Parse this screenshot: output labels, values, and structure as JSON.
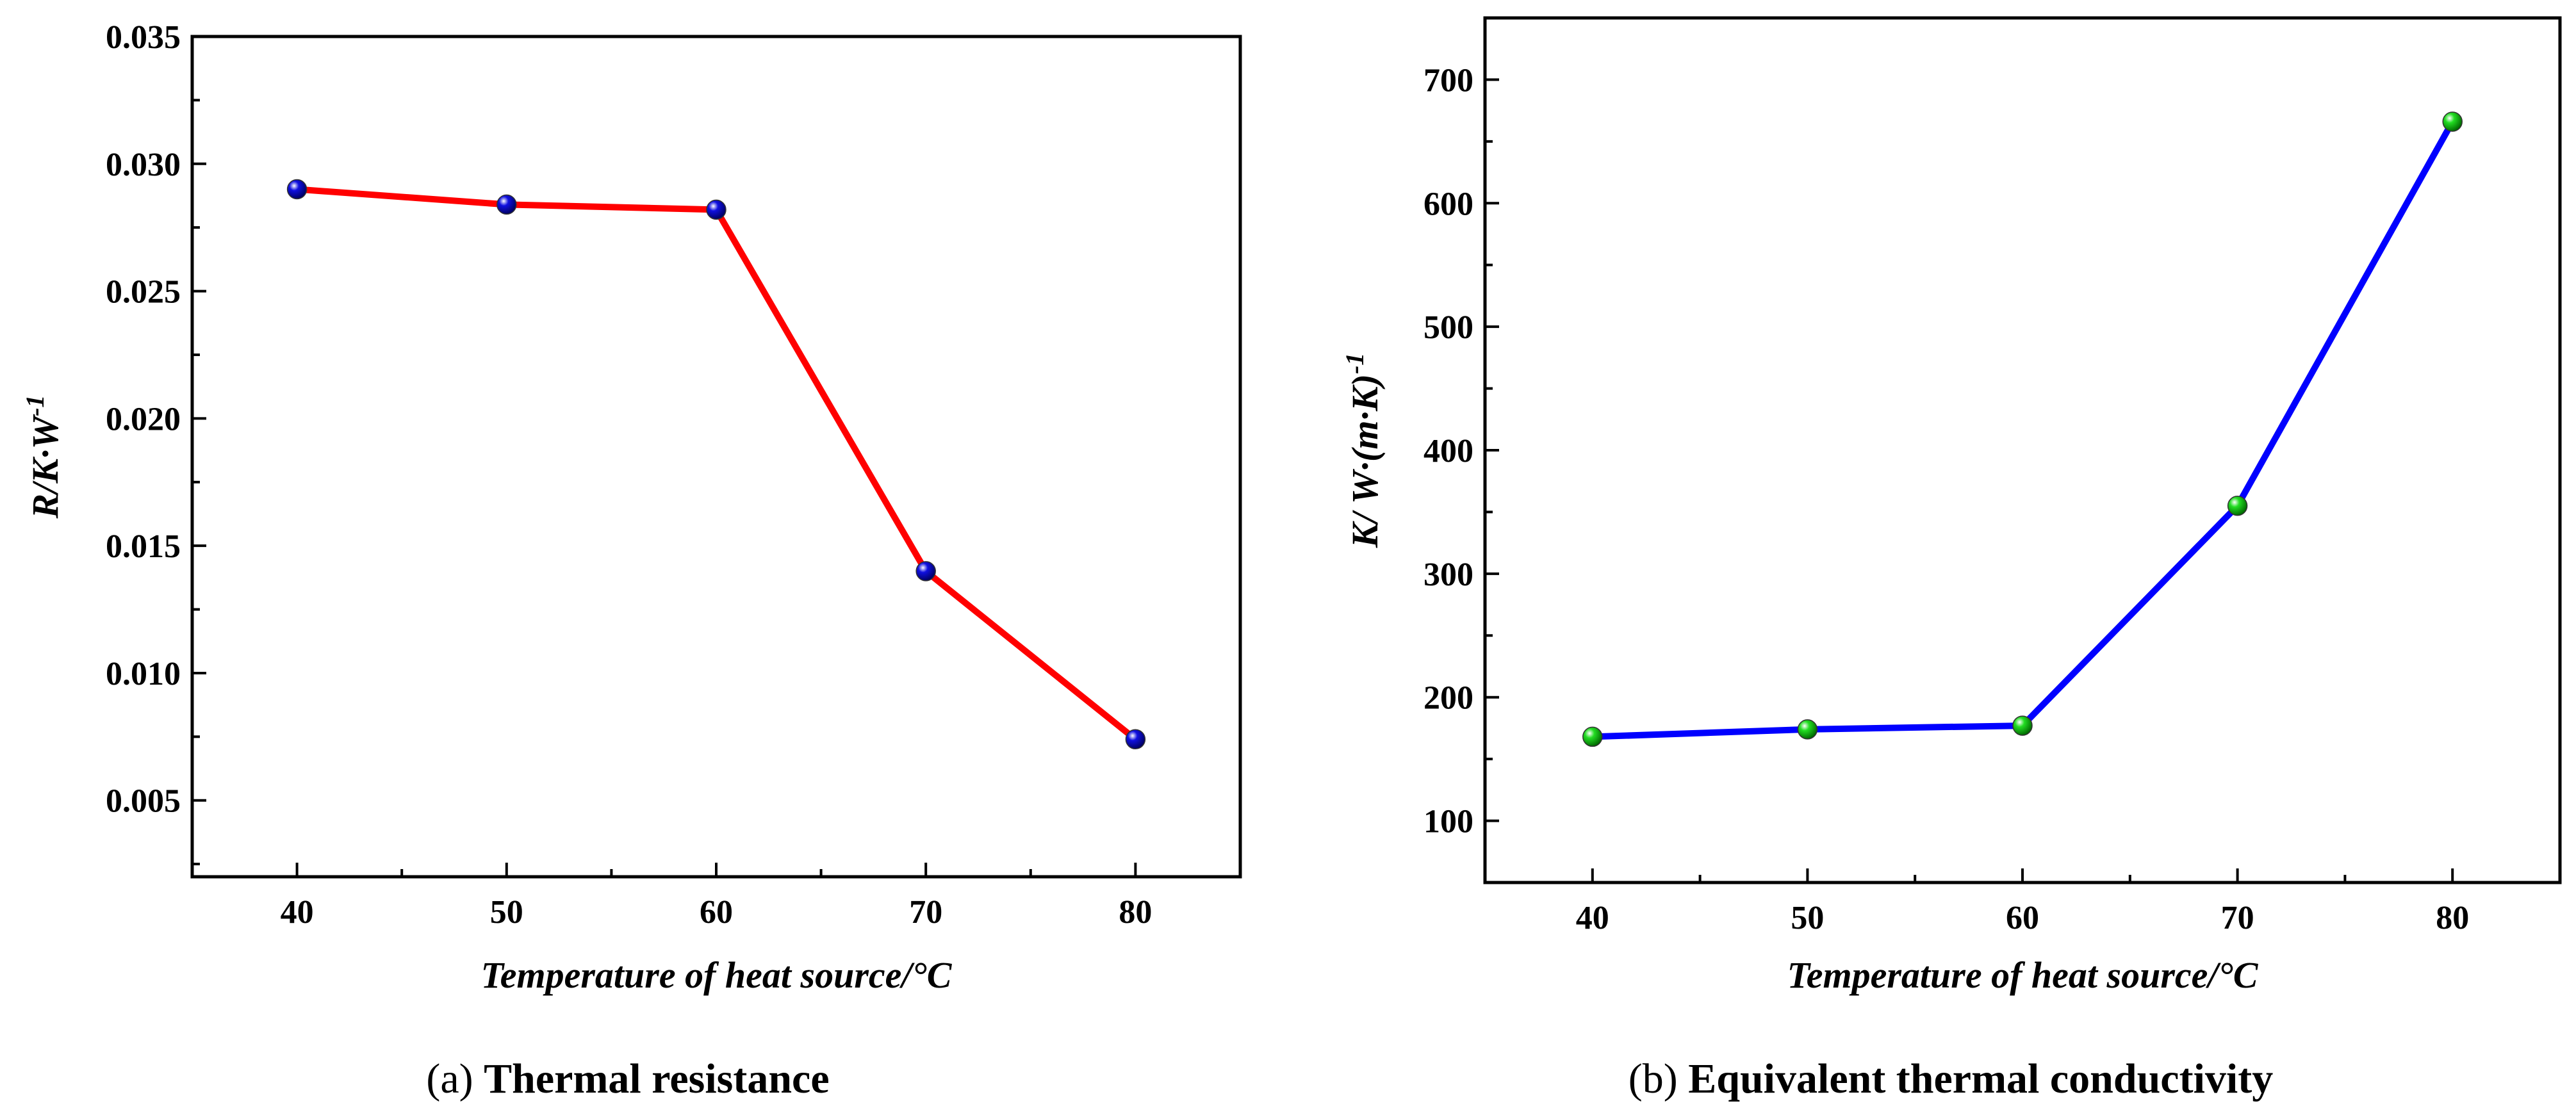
{
  "chart_data": [
    {
      "type": "line",
      "caption_prefix": "(a)",
      "caption_title": "Thermal resistance",
      "xlabel": "Temperature of heat source/°C",
      "ylabel_main": "R/K·W",
      "ylabel_sup": "-1",
      "x": [
        40,
        50,
        60,
        70,
        80
      ],
      "series": [
        {
          "name": "Thermal resistance",
          "values": [
            0.029,
            0.0284,
            0.0282,
            0.014,
            0.0074
          ]
        }
      ],
      "xlim": [
        35,
        85
      ],
      "ylim": [
        0.002,
        0.035
      ],
      "xticks": [
        40,
        50,
        60,
        70,
        80
      ],
      "xtick_labels": [
        "40",
        "50",
        "60",
        "70",
        "80"
      ],
      "yticks": [
        0.005,
        0.01,
        0.015,
        0.02,
        0.025,
        0.03,
        0.035
      ],
      "ytick_labels": [
        "0.005",
        "0.010",
        "0.015",
        "0.020",
        "0.025",
        "0.030",
        "0.035"
      ],
      "line_color": "#ff0000",
      "marker_color": "#1010e0",
      "grid": false
    },
    {
      "type": "line",
      "caption_prefix": "(b)",
      "caption_title": "Equivalent thermal conductivity",
      "xlabel": "Temperature of heat source/°C",
      "ylabel_main": "K/ W·(m·K)",
      "ylabel_sup": "-1",
      "x": [
        40,
        50,
        60,
        70,
        80
      ],
      "series": [
        {
          "name": "Equivalent thermal conductivity",
          "values": [
            168,
            174,
            177,
            355,
            666
          ]
        }
      ],
      "xlim": [
        35,
        85
      ],
      "ylim": [
        50,
        750
      ],
      "xticks": [
        40,
        50,
        60,
        70,
        80
      ],
      "xtick_labels": [
        "40",
        "50",
        "60",
        "70",
        "80"
      ],
      "yticks": [
        100,
        200,
        300,
        400,
        500,
        600,
        700
      ],
      "ytick_labels": [
        "100",
        "200",
        "300",
        "400",
        "500",
        "600",
        "700"
      ],
      "line_color": "#0000ff",
      "marker_color": "#22dd22",
      "grid": false
    }
  ]
}
